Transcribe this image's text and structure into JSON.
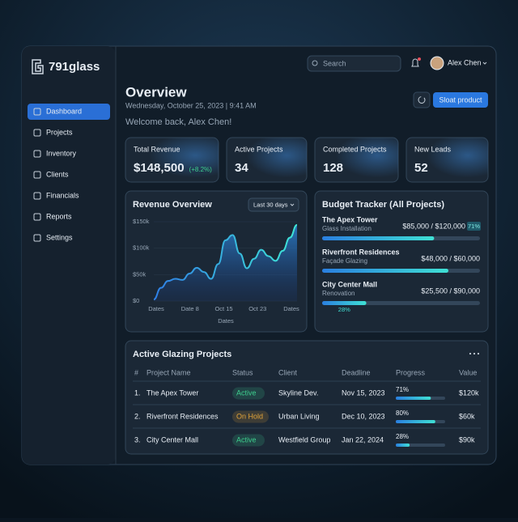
{
  "brand": "791glass",
  "nav": [
    "Dashboard",
    "Projects",
    "Inventory",
    "Clients",
    "Financials",
    "Reports",
    "Settings"
  ],
  "search_placeholder": "Search",
  "user": "Alex Chen",
  "header": {
    "title": "Overview",
    "date": "Wednesday, October 25, 2023 | 9:41 AM",
    "welcome": "Welcome back, Alex Chen!",
    "button": "Sloat product"
  },
  "kpis": [
    {
      "label": "Total Revenue",
      "value": "$148,500",
      "change": "(+8.2%)"
    },
    {
      "label": "Active Projects",
      "value": "34"
    },
    {
      "label": "Completed Projects",
      "value": "128"
    },
    {
      "label": "New Leads",
      "value": "52"
    }
  ],
  "revenue": {
    "title": "Revenue Overview",
    "range": "Last 30 days",
    "chart": {
      "type": "area",
      "x_title": "Dates",
      "x_labels": [
        "Dates",
        "Date 8",
        "Oct 15",
        "Oct 23",
        "Dates"
      ],
      "values": [
        3000,
        25000,
        38000,
        42000,
        40000,
        52000,
        63000,
        55000,
        42000,
        70000,
        115000,
        125000,
        90000,
        62000,
        80000,
        97000,
        85000,
        76000,
        95000,
        120000,
        144000
      ],
      "ylim": [
        0,
        150000
      ],
      "yticks": [
        {
          "value": 0,
          "label": "$0"
        },
        {
          "value": 50000,
          "label": "$50k"
        },
        {
          "value": 100000,
          "label": "$100k"
        },
        {
          "value": 150000,
          "label": "$150k"
        }
      ]
    }
  },
  "budget": {
    "title": "Budget Tracker (All Projects)",
    "items": [
      {
        "name": "The Apex Tower",
        "type": "Glass Installation",
        "amount": "$85,000 / $120,000",
        "percent": 71,
        "percent_label": "71%"
      },
      {
        "name": "Riverfront Residences",
        "type": "Façade Glazing",
        "amount": "$48,000 / $60,000",
        "percent": 80
      },
      {
        "name": "City Center Mall",
        "type": "Renovation",
        "amount": "$25,500 / $90,000",
        "percent": 28,
        "percent_label": "28%"
      }
    ]
  },
  "projects": {
    "title": "Active Glazing Projects",
    "columns": [
      "#",
      "Project Name",
      "Status",
      "Client",
      "Deadline",
      "Progress",
      "Value"
    ],
    "rows": [
      {
        "num": "1.",
        "name": "The Apex Tower",
        "status": "Active",
        "status_color": "#3ecf8e",
        "client": "Skyline Dev.",
        "deadline": "Nov 15, 2023",
        "progress": 71,
        "progress_label": "71%",
        "value": "$120k"
      },
      {
        "num": "2.",
        "name": "Riverfront Residences",
        "status": "On Hold",
        "status_color": "#e0a33a",
        "client": "Urban Living",
        "deadline": "Dec 10, 2023",
        "progress": 80,
        "progress_label": "80%",
        "value": "$60k"
      },
      {
        "num": "3.",
        "name": "City Center Mall",
        "status": "Active",
        "status_color": "#3ecf8e",
        "client": "Westfield Group",
        "deadline": "Jan 22, 2024",
        "progress": 28,
        "progress_label": "28%",
        "value": "$90k"
      }
    ]
  }
}
